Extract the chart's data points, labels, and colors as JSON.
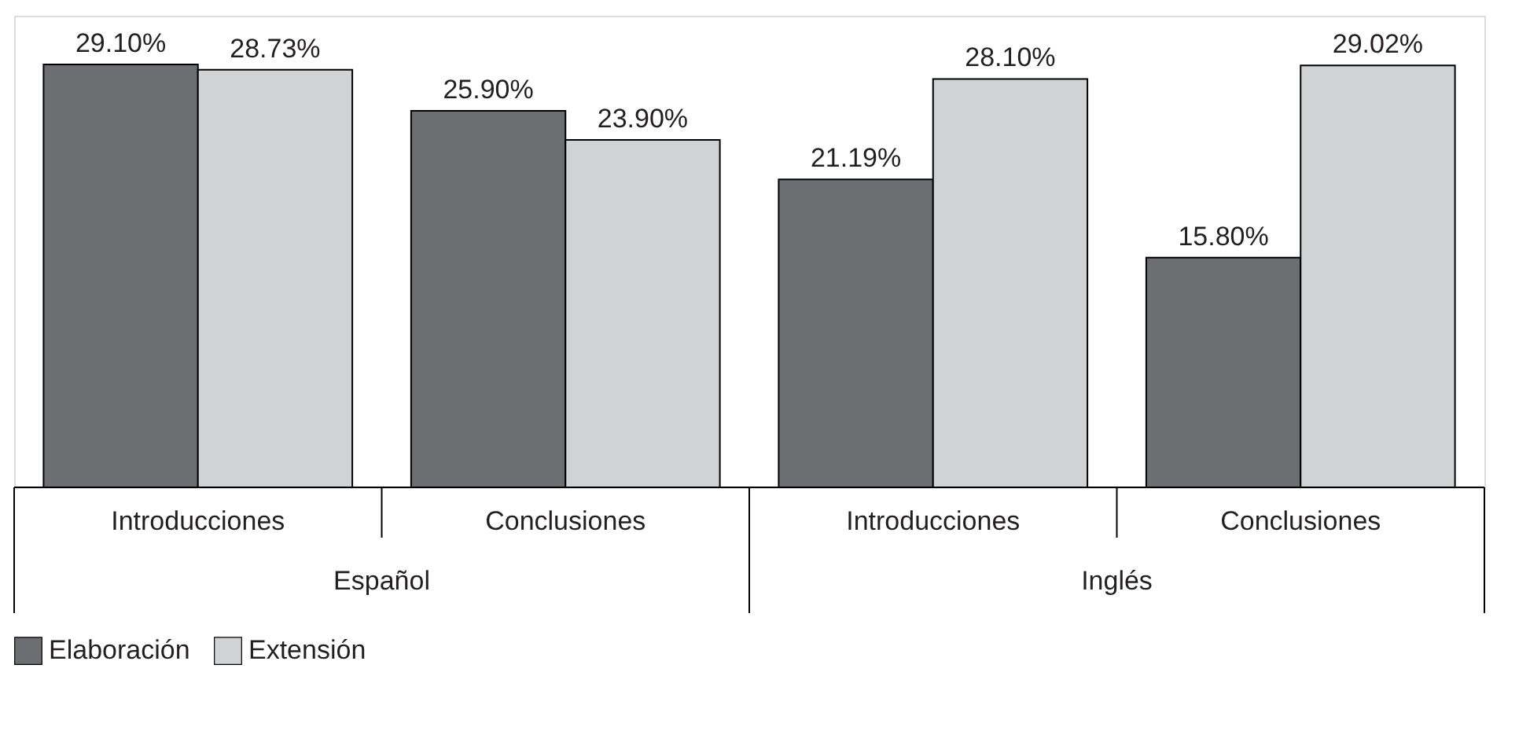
{
  "chart_data": {
    "type": "bar",
    "categories": [
      "Introducciones",
      "Conclusiones",
      "Introducciones",
      "Conclusiones"
    ],
    "annotations": [
      "Español",
      "Inglés"
    ],
    "series": [
      {
        "name": "Elaboración",
        "color": "#6d6e71",
        "values": [
          29.1,
          25.9,
          21.19,
          15.8
        ],
        "value_labels": [
          "29.10%",
          "25.90%",
          "21.19%",
          "15.80%"
        ]
      },
      {
        "name": "Extensión",
        "color": "#d1d2d4",
        "values": [
          28.73,
          23.9,
          28.1,
          29.02
        ],
        "value_labels": [
          "28.73%",
          "23.90%",
          "28.10%",
          "29.02%"
        ]
      }
    ],
    "legend": "bottom",
    "grid": false
  }
}
